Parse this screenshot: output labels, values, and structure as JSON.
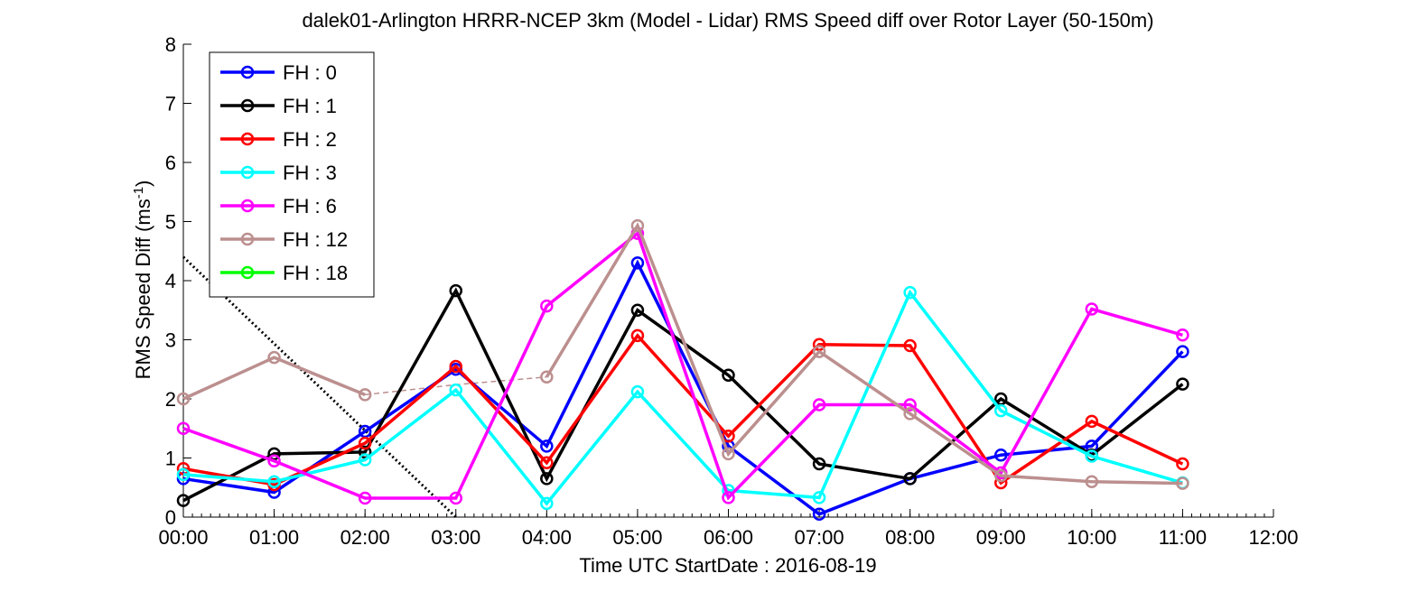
{
  "chart_data": {
    "type": "line",
    "title": "dalek01-Arlington HRRR-NCEP 3km (Model - Lidar) RMS Speed diff over Rotor Layer (50-150m)",
    "xlabel": "Time UTC    StartDate : 2016-08-19",
    "ylabel_main": "RMS Speed Diff (ms",
    "ylabel_sup": "-1",
    "ylabel_end": ")",
    "xlim": [
      0,
      12
    ],
    "ylim": [
      0,
      8
    ],
    "x_ticks": [
      0,
      1,
      2,
      3,
      4,
      5,
      6,
      7,
      8,
      9,
      10,
      11,
      12
    ],
    "x_tick_labels": [
      "00:00",
      "01:00",
      "02:00",
      "03:00",
      "04:00",
      "05:00",
      "06:00",
      "07:00",
      "08:00",
      "09:00",
      "10:00",
      "11:00",
      "12:00"
    ],
    "y_ticks": [
      0,
      1,
      2,
      3,
      4,
      5,
      6,
      7,
      8
    ],
    "y_tick_labels": [
      "0",
      "1",
      "2",
      "3",
      "4",
      "5",
      "6",
      "7",
      "8"
    ],
    "legend_position": "top-left",
    "series": [
      {
        "name": "FH : 0",
        "color": "#0000ff",
        "values": [
          0.65,
          0.42,
          1.45,
          2.5,
          1.2,
          4.3,
          1.2,
          0.05,
          0.65,
          1.05,
          1.2,
          2.8
        ]
      },
      {
        "name": "FH : 1",
        "color": "#000000",
        "values": [
          0.28,
          1.07,
          1.1,
          3.83,
          0.65,
          3.5,
          2.4,
          0.9,
          0.65,
          2.0,
          1.05,
          2.25
        ]
      },
      {
        "name": "FH : 2",
        "color": "#ff0000",
        "values": [
          0.82,
          0.55,
          1.25,
          2.55,
          0.92,
          3.07,
          1.37,
          2.92,
          2.9,
          0.58,
          1.62,
          0.9
        ]
      },
      {
        "name": "FH : 3",
        "color": "#00ffff",
        "values": [
          0.72,
          0.6,
          0.97,
          2.15,
          0.23,
          2.12,
          0.45,
          0.33,
          3.8,
          1.8,
          1.03,
          0.58
        ]
      },
      {
        "name": "FH : 6",
        "color": "#ff00ff",
        "values": [
          1.5,
          0.95,
          0.32,
          0.32,
          3.57,
          4.8,
          0.33,
          1.9,
          1.9,
          0.75,
          3.52,
          3.08
        ]
      },
      {
        "name": "FH : 12",
        "color": "#bc8f8f",
        "values": [
          2.0,
          2.7,
          2.07,
          null,
          2.37,
          4.93,
          1.07,
          2.8,
          1.75,
          0.7,
          0.6,
          0.57
        ]
      },
      {
        "name": "FH : 18",
        "color": "#00ff00",
        "values": []
      }
    ],
    "dashed_connector": {
      "color": "#bc8f8f",
      "x": [
        2,
        3,
        4
      ],
      "values": [
        2.07,
        2.24,
        2.37
      ]
    },
    "dotted_line": {
      "color": "#000000",
      "x": [
        0,
        3.0
      ],
      "values": [
        4.4,
        0
      ]
    }
  }
}
